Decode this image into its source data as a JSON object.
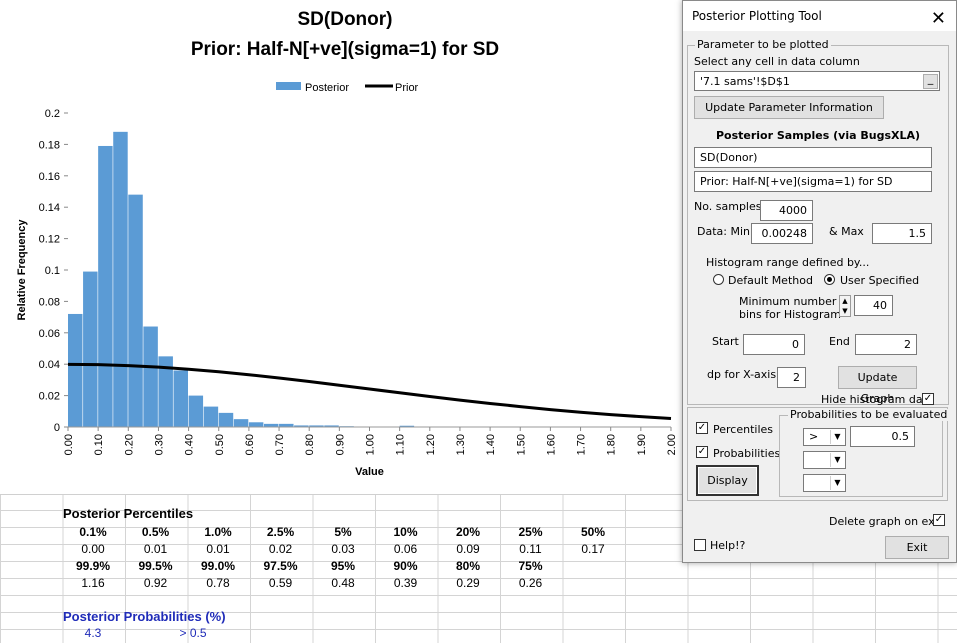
{
  "chart_data": {
    "type": "bar",
    "title": "SD(Donor)",
    "subtitle": "Prior: Half-N[+ve](sigma=1) for SD",
    "xlabel": "Value",
    "ylabel": "Relative Frequency",
    "legend": [
      "Posterior",
      "Prior"
    ],
    "legend_position": "top",
    "xlim": [
      0,
      2
    ],
    "ylim": [
      0,
      0.2
    ],
    "yticks": [
      "0",
      "0.02",
      "0.04",
      "0.06",
      "0.08",
      "0.1",
      "0.12",
      "0.14",
      "0.16",
      "0.18",
      "0.2"
    ],
    "xticks": [
      "0.00",
      "0.10",
      "0.20",
      "0.30",
      "0.40",
      "0.50",
      "0.60",
      "0.70",
      "0.80",
      "0.90",
      "1.00",
      "1.10",
      "1.20",
      "1.30",
      "1.40",
      "1.50",
      "1.60",
      "1.70",
      "1.80",
      "1.90",
      "2.00"
    ],
    "bin_width": 0.05,
    "series": [
      {
        "name": "Posterior",
        "kind": "bar",
        "color": "#5b9bd5",
        "bin_starts": [
          0.0,
          0.05,
          0.1,
          0.15,
          0.2,
          0.25,
          0.3,
          0.35,
          0.4,
          0.45,
          0.5,
          0.55,
          0.6,
          0.65,
          0.7,
          0.75,
          0.8,
          0.85,
          0.9,
          0.95,
          1.0,
          1.05,
          1.1,
          1.15,
          1.2
        ],
        "values": [
          0.072,
          0.099,
          0.179,
          0.188,
          0.148,
          0.064,
          0.045,
          0.036,
          0.02,
          0.013,
          0.009,
          0.005,
          0.003,
          0.002,
          0.002,
          0.001,
          0.001,
          0.001,
          0.0005,
          0.0003,
          0.0002,
          0.0001,
          0.0008,
          0.0001,
          0.0001
        ]
      },
      {
        "name": "Prior",
        "kind": "line",
        "color": "#000000",
        "x": [
          0.0,
          0.1,
          0.2,
          0.3,
          0.4,
          0.5,
          0.6,
          0.7,
          0.8,
          0.9,
          1.0,
          1.1,
          1.2,
          1.3,
          1.4,
          1.5,
          1.6,
          1.7,
          1.8,
          1.9,
          2.0
        ],
        "values": [
          0.0399,
          0.0397,
          0.0391,
          0.0381,
          0.0368,
          0.0352,
          0.0333,
          0.0312,
          0.029,
          0.0266,
          0.0242,
          0.0218,
          0.0194,
          0.0171,
          0.015,
          0.013,
          0.0111,
          0.0094,
          0.0079,
          0.0066,
          0.0054
        ]
      }
    ]
  },
  "percentiles": {
    "title": "Posterior Percentiles",
    "row1_labels": [
      "0.1%",
      "0.5%",
      "1.0%",
      "2.5%",
      "5%",
      "10%",
      "20%",
      "25%",
      "50%"
    ],
    "row1_values": [
      "0.00",
      "0.01",
      "0.01",
      "0.02",
      "0.03",
      "0.06",
      "0.09",
      "0.11",
      "0.17"
    ],
    "row2_labels": [
      "99.9%",
      "99.5%",
      "99.0%",
      "97.5%",
      "95%",
      "90%",
      "80%",
      "75%"
    ],
    "row2_values": [
      "1.16",
      "0.92",
      "0.78",
      "0.59",
      "0.48",
      "0.39",
      "0.29",
      "0.26"
    ]
  },
  "probabilities": {
    "title": "Posterior Probabilities (%)",
    "value": "4.3",
    "condition": "> 0.5",
    "color": "#1f2bb8"
  },
  "dialog": {
    "title": "Posterior Plotting Tool",
    "param_group": "Parameter to be plotted",
    "select_prompt": "Select any cell in data column",
    "cell_ref": "'7.1 sams'!$D$1",
    "ref_button": "_",
    "update_param_button": "Update Parameter Information",
    "samples_heading": "Posterior Samples (via BugsXLA)",
    "param_name": "SD(Donor)",
    "prior_text": "Prior: Half-N[+ve](sigma=1) for SD",
    "no_samples_label": "No. samples",
    "no_samples": "4000",
    "data_min_label": "Data: Min",
    "data_min": "0.00248",
    "max_label": "& Max",
    "data_max": "1.5",
    "hist_range_label": "Histogram range defined by...",
    "default_method": "Default Method",
    "user_specified": "User Specified",
    "min_bins_label1": "Minimum number of",
    "min_bins_label2": "bins for Histogram",
    "min_bins": "40",
    "start_label": "Start",
    "start": "0",
    "end_label": "End",
    "end": "2",
    "dp_label": "dp for X-axis",
    "dp": "2",
    "update_graph_button": "Update Graph",
    "hide_hist_label": "Hide histogram data",
    "percentiles_label": "Percentiles",
    "probabilities_label": "Probabilities",
    "display_button": "Display",
    "prob_group": "Probabilities to be evaluated",
    "prob_op": ">",
    "prob_value": "0.5",
    "delete_graph_label": "Delete graph on exit",
    "help_label": "Help!?",
    "exit_button": "Exit"
  }
}
